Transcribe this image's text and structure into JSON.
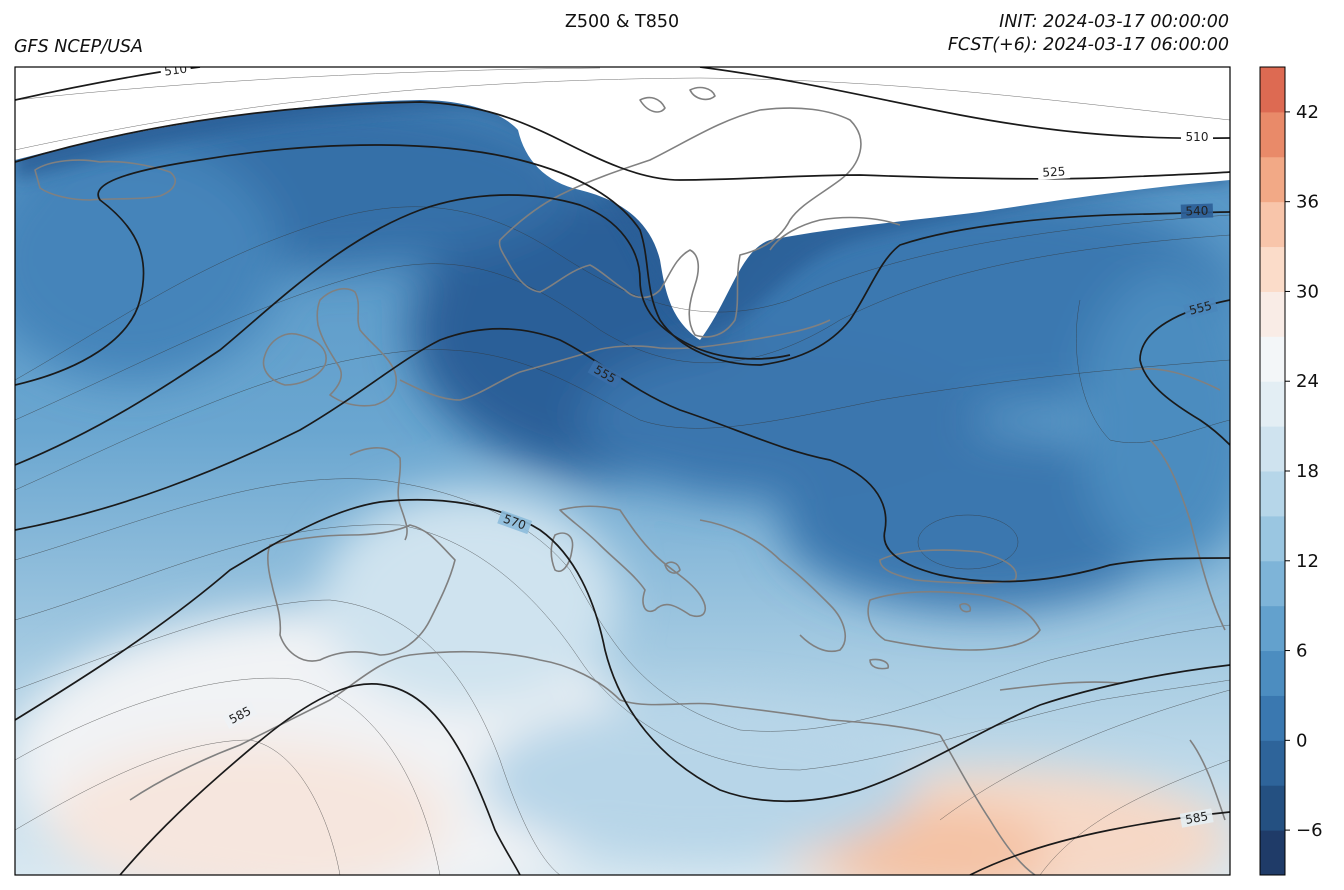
{
  "header": {
    "source": "GFS NCEP/USA",
    "title": "Z500 & T850",
    "init": "INIT: 2024-03-17 00:00:00",
    "forecast": "FCST(+6): 2024-03-17 06:00:00"
  },
  "map": {
    "fields": [
      "Z500",
      "T850"
    ],
    "coastline_color": "#808080",
    "contour_color": "#1a1a1a",
    "contour_labels": [
      "510",
      "510",
      "525",
      "540",
      "555",
      "555",
      "570",
      "585",
      "585"
    ]
  },
  "colorbar": {
    "range": [
      -9,
      45
    ],
    "step": 3,
    "ticks": [
      "−6",
      "0",
      "6",
      "12",
      "18",
      "24",
      "30",
      "36",
      "42"
    ],
    "colors": [
      "#1f3b68",
      "#245081",
      "#2e649a",
      "#3a78b0",
      "#4c8dc0",
      "#63a1cd",
      "#7eb4d8",
      "#9ac6e1",
      "#b6d6e9",
      "#cfe3ef",
      "#e3eef4",
      "#f3f6f8",
      "#f9ece6",
      "#fbdcc9",
      "#f8c5aa",
      "#f2a986",
      "#e98a69",
      "#dd6a52",
      "#cf4e45",
      "#c0353a",
      "#a92533",
      "#8c1a2b"
    ]
  }
}
